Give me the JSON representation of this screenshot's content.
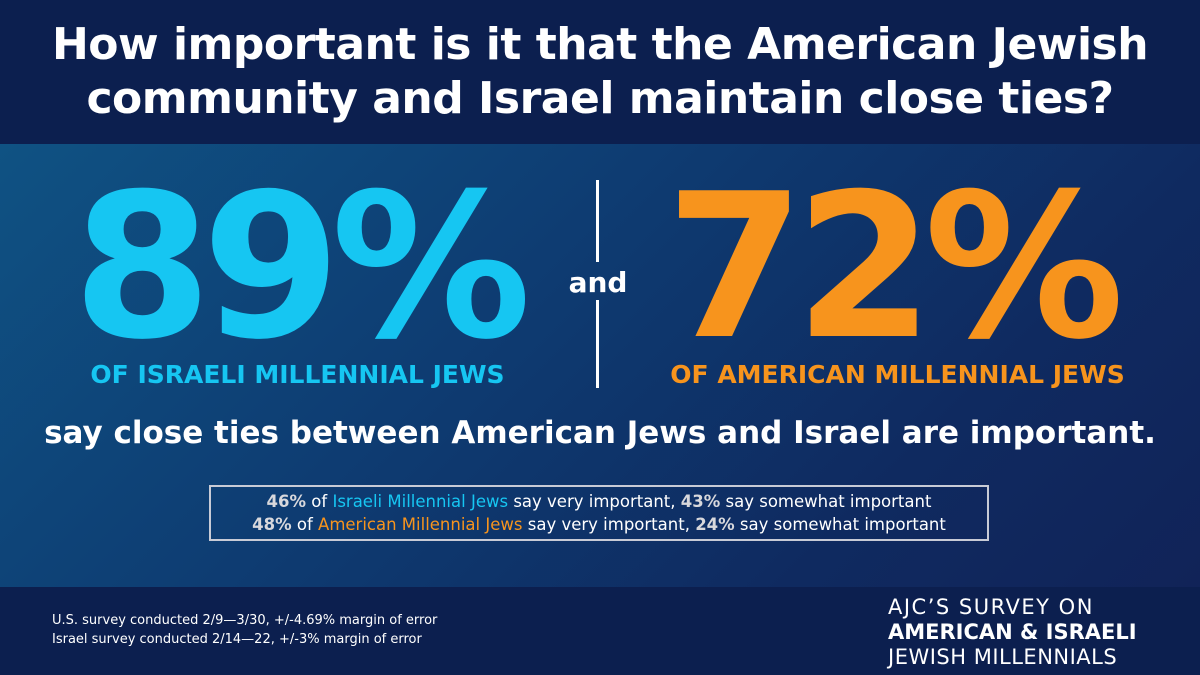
{
  "header": {
    "title_line1": "How important is it that the American Jewish",
    "title_line2": "community and Israel maintain close ties?"
  },
  "stats": {
    "israeli": {
      "value": "89%",
      "label": "OF ISRAELI MILLENNIAL JEWS",
      "color": "#16c6f2"
    },
    "connector": "and",
    "american": {
      "value": "72%",
      "label": "OF AMERICAN MILLENNIAL JEWS",
      "color": "#f7941d"
    }
  },
  "statement": "say close ties between American Jews and Israel are important.",
  "breakdown": {
    "israeli": {
      "very_pct": "46%",
      "of": " of ",
      "group": "Israeli Millennial Jews",
      "very_text": " say very important, ",
      "somewhat_pct": "43%",
      "somewhat_text": " say somewhat important"
    },
    "american": {
      "very_pct": "48%",
      "of": " of ",
      "group": "American Millennial Jews",
      "very_text": " say very important, ",
      "somewhat_pct": "24%",
      "somewhat_text": " say somewhat important"
    }
  },
  "footer": {
    "note1": "U.S. survey conducted 2/9—3/30, +/-4.69% margin of error",
    "note2": "Israel survey conducted 2/14—22, +/-3% margin of error",
    "brand_line1": "AJC’S SURVEY ON",
    "brand_line2": "AMERICAN & ISRAELI",
    "brand_line3": "JEWISH MILLENNIALS"
  }
}
